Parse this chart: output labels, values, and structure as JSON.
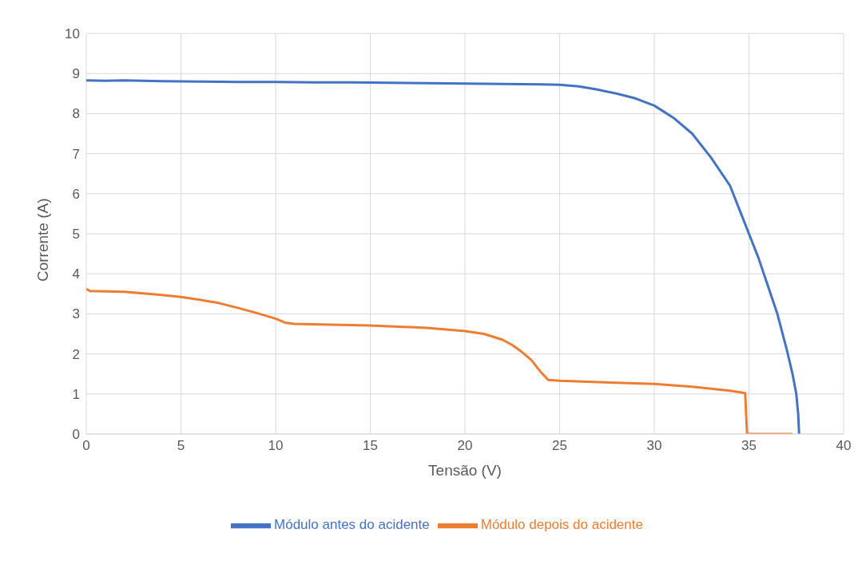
{
  "chart_data": {
    "type": "line",
    "xlabel": "Tensão (V)",
    "ylabel": "Corrente (A)",
    "xlim": [
      0,
      40
    ],
    "xticks": [
      0,
      5,
      10,
      15,
      20,
      25,
      30,
      35,
      40
    ],
    "ylim": [
      0,
      10
    ],
    "yticks": [
      0,
      1,
      2,
      3,
      4,
      5,
      6,
      7,
      8,
      9,
      10
    ],
    "grid": true,
    "legend": "bottom",
    "marker": "none",
    "line_style": "solid",
    "series": [
      {
        "name": "Módulo antes do acidente",
        "color": "#4472c4",
        "x": [
          0,
          1,
          2,
          4,
          6,
          8,
          10,
          12,
          14,
          16,
          18,
          20,
          22,
          24,
          25,
          26,
          27,
          28,
          29,
          30,
          31,
          32,
          33,
          34,
          34.5,
          35,
          35.5,
          36,
          36.5,
          37,
          37.3,
          37.5,
          37.6,
          37.65
        ],
        "values": [
          8.83,
          8.82,
          8.83,
          8.81,
          8.8,
          8.79,
          8.79,
          8.78,
          8.78,
          8.77,
          8.76,
          8.75,
          8.74,
          8.73,
          8.72,
          8.68,
          8.6,
          8.5,
          8.38,
          8.2,
          7.9,
          7.5,
          6.9,
          6.2,
          5.6,
          5.0,
          4.4,
          3.7,
          3.0,
          2.1,
          1.5,
          1.0,
          0.5,
          0
        ]
      },
      {
        "name": "Módulo depois do acidente",
        "color": "#ed7d31",
        "x": [
          0,
          0.2,
          2,
          4,
          5,
          6,
          7,
          8,
          9,
          10,
          10.5,
          11,
          13,
          15,
          18,
          20,
          21,
          22,
          22.5,
          23,
          23.5,
          24,
          24.4,
          25,
          28,
          30,
          32,
          34,
          34.8,
          34.9,
          37.3
        ],
        "values": [
          3.62,
          3.57,
          3.55,
          3.47,
          3.42,
          3.35,
          3.27,
          3.15,
          3.02,
          2.88,
          2.78,
          2.75,
          2.73,
          2.71,
          2.65,
          2.57,
          2.5,
          2.35,
          2.22,
          2.05,
          1.85,
          1.55,
          1.35,
          1.33,
          1.28,
          1.25,
          1.18,
          1.08,
          1.02,
          0,
          0
        ]
      }
    ]
  }
}
